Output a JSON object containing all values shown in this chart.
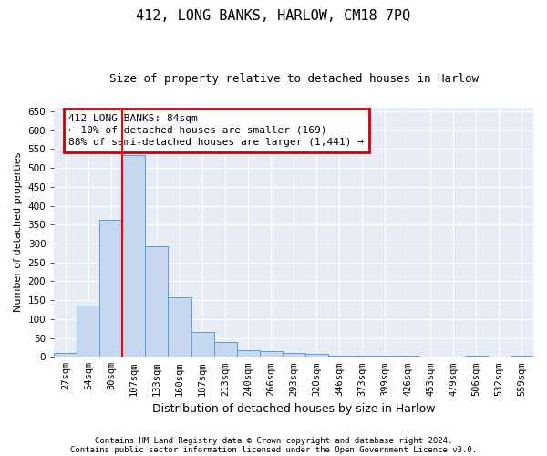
{
  "title": "412, LONG BANKS, HARLOW, CM18 7PQ",
  "subtitle": "Size of property relative to detached houses in Harlow",
  "xlabel": "Distribution of detached houses by size in Harlow",
  "ylabel": "Number of detached properties",
  "footer_line1": "Contains HM Land Registry data © Crown copyright and database right 2024.",
  "footer_line2": "Contains public sector information licensed under the Open Government Licence v3.0.",
  "annotation_line1": "412 LONG BANKS: 84sqm",
  "annotation_line2": "← 10% of detached houses are smaller (169)",
  "annotation_line3": "88% of semi-detached houses are larger (1,441) →",
  "bar_labels": [
    "27sqm",
    "54sqm",
    "80sqm",
    "107sqm",
    "133sqm",
    "160sqm",
    "187sqm",
    "213sqm",
    "240sqm",
    "266sqm",
    "293sqm",
    "320sqm",
    "346sqm",
    "373sqm",
    "399sqm",
    "426sqm",
    "453sqm",
    "479sqm",
    "506sqm",
    "532sqm",
    "559sqm"
  ],
  "bar_values": [
    10,
    135,
    362,
    535,
    292,
    158,
    65,
    40,
    18,
    15,
    10,
    8,
    4,
    3,
    3,
    2,
    1,
    0,
    3,
    0,
    3
  ],
  "bar_color": "#c6d9f0",
  "bar_edge_color": "#5b9bd5",
  "red_line_x": 2.5,
  "ylim": [
    0,
    660
  ],
  "yticks": [
    0,
    50,
    100,
    150,
    200,
    250,
    300,
    350,
    400,
    450,
    500,
    550,
    600,
    650
  ],
  "bg_color": "#e8edf5",
  "grid_color": "#ffffff",
  "annotation_box_color": "#cc0000",
  "annotation_text_color": "#000000",
  "title_fontsize": 11,
  "subtitle_fontsize": 9,
  "ylabel_fontsize": 8,
  "xlabel_fontsize": 9,
  "tick_fontsize": 7.5,
  "footer_fontsize": 6.5,
  "annotation_fontsize": 8
}
